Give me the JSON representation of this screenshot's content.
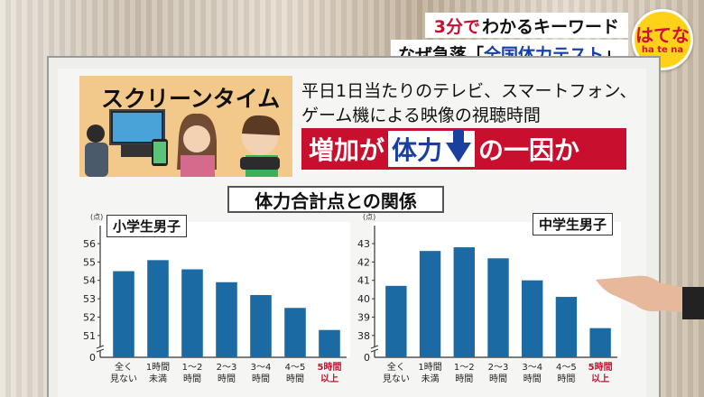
{
  "caption": {
    "line1_red": "3分で",
    "line1_rest": "わかるキーワード",
    "line2_pre": "なぜ急落「",
    "line2_blue": "全国体力テスト",
    "line2_post": "」"
  },
  "logo": {
    "main": "はてな",
    "sub": "ha te na"
  },
  "board": {
    "topic_title": "スクリーンタイム",
    "description_line1": "平日1日当たりのテレビ、スマートフォン、",
    "description_line2": "ゲーム機による映像の視聴時間",
    "headline_pre": "増加が",
    "headline_box": "体力",
    "headline_post": "の一因か",
    "section_title": "体力合計点との関係"
  },
  "chart_data": [
    {
      "type": "bar",
      "title": "小学生男子",
      "unit": "(点)",
      "categories": [
        [
          "全く",
          "見ない"
        ],
        [
          "1時間",
          "未満"
        ],
        [
          "1～2",
          "時間"
        ],
        [
          "2～3",
          "時間"
        ],
        [
          "3～4",
          "時間"
        ],
        [
          "4～5",
          "時間"
        ],
        [
          "5時間",
          "以上"
        ]
      ],
      "highlight_last": true,
      "values": [
        54.5,
        55.1,
        54.6,
        53.9,
        53.2,
        52.5,
        51.3
      ],
      "ylim": [
        50.5,
        56
      ],
      "yticks": [
        51,
        52,
        53,
        54,
        55,
        56
      ],
      "zero_label": "0",
      "grid": false,
      "bar_color": "#1b6aa3",
      "highlight_color": "#c8102e"
    },
    {
      "type": "bar",
      "title": "中学生男子",
      "unit": "(点)",
      "categories": [
        [
          "全く",
          "見ない"
        ],
        [
          "1時間",
          "未満"
        ],
        [
          "1～2",
          "時間"
        ],
        [
          "2～3",
          "時間"
        ],
        [
          "3～4",
          "時間"
        ],
        [
          "4～5",
          "時間"
        ],
        [
          "5時間",
          "以上"
        ]
      ],
      "highlight_last": true,
      "values": [
        40.7,
        42.6,
        42.8,
        42.2,
        41.0,
        40.1,
        38.4
      ],
      "ylim": [
        37.5,
        43
      ],
      "yticks": [
        38,
        39,
        40,
        41,
        42,
        43
      ],
      "zero_label": "0",
      "grid": false,
      "bar_color": "#1b6aa3",
      "highlight_color": "#c8102e"
    }
  ]
}
